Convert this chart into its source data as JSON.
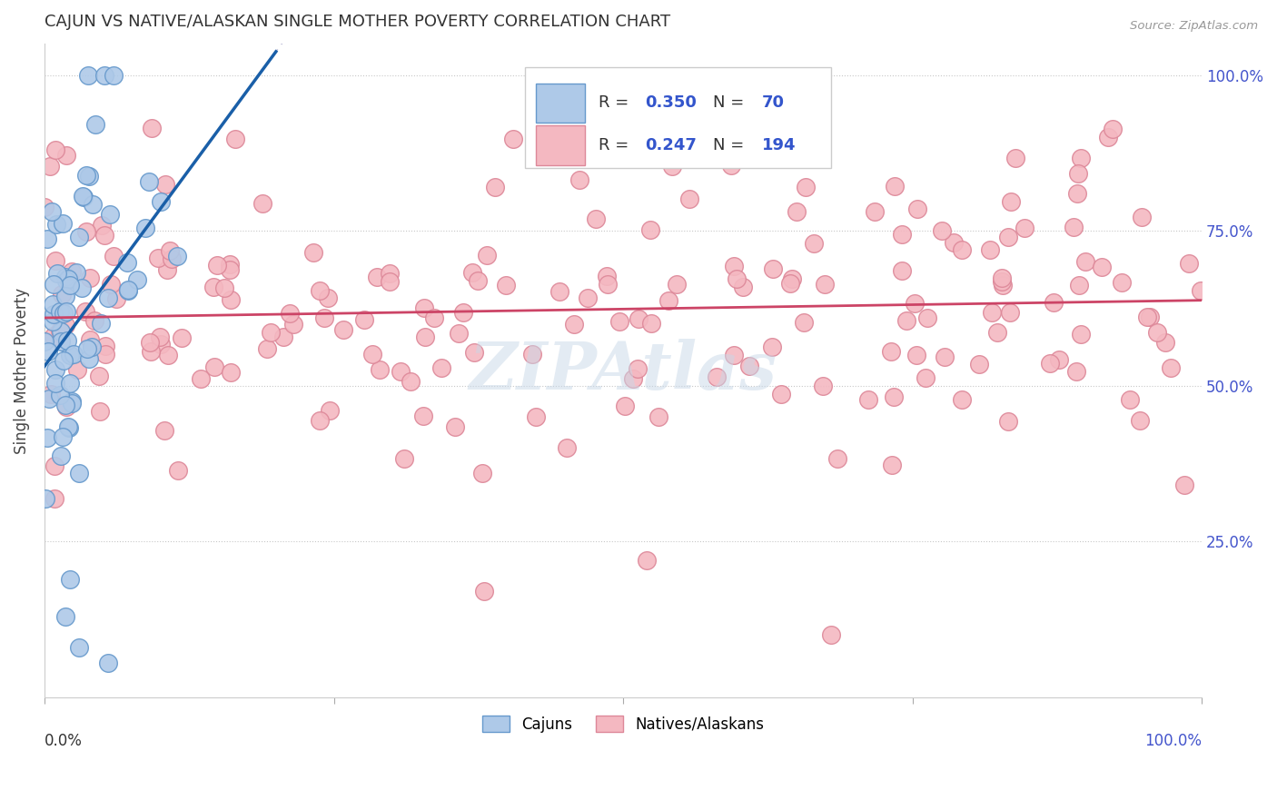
{
  "title": "CAJUN VS NATIVE/ALASKAN SINGLE MOTHER POVERTY CORRELATION CHART",
  "source": "Source: ZipAtlas.com",
  "ylabel": "Single Mother Poverty",
  "cajun_R": 0.35,
  "cajun_N": 70,
  "native_R": 0.247,
  "native_N": 194,
  "cajun_color": "#aec9e8",
  "native_color": "#f4b8c1",
  "cajun_edge_color": "#6699cc",
  "native_edge_color": "#dd8899",
  "trend_cajun_color": "#1a5fa8",
  "trend_native_color": "#cc4466",
  "dash_color": "#aaaacc",
  "watermark_color": "#c8d8e8",
  "background_color": "#ffffff",
  "grid_color": "#c8c8c8",
  "title_color": "#333333",
  "right_axis_color": "#4455cc",
  "legend_R_color": "#3355cc",
  "legend_text_color": "#333333",
  "bottom_label_color_left": "#333333",
  "bottom_label_color_right": "#4455cc"
}
